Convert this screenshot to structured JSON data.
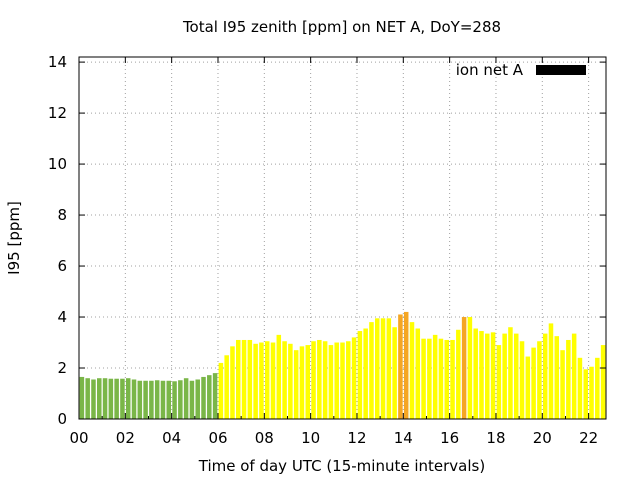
{
  "chart_data": {
    "type": "bar",
    "title": "Total I95 zenith [ppm] on NET A, DoY=288",
    "xlabel": "Time of day UTC (15-minute intervals)",
    "ylabel": "I95 [ppm]",
    "xlim": [
      0,
      22.75
    ],
    "ylim": [
      0,
      14.2
    ],
    "x_ticks": [
      0,
      2,
      4,
      6,
      8,
      10,
      12,
      14,
      16,
      18,
      20,
      22
    ],
    "x_tick_labels": [
      "00",
      "02",
      "04",
      "06",
      "08",
      "10",
      "12",
      "14",
      "16",
      "18",
      "20",
      "22"
    ],
    "y_ticks": [
      0,
      2,
      4,
      6,
      8,
      10,
      12,
      14
    ],
    "y_tick_labels": [
      "0",
      "2",
      "4",
      "6",
      "8",
      "10",
      "12",
      "14"
    ],
    "grid": true,
    "legend": {
      "label": "ion net A",
      "color": "#000000",
      "position": "top-right"
    },
    "series": [
      {
        "x": [
          0.0,
          0.25,
          0.5,
          0.75,
          1.0,
          1.25,
          1.5,
          1.75,
          2.0,
          2.25,
          2.5,
          2.75,
          3.0,
          3.25,
          3.5,
          3.75,
          4.0,
          4.25,
          4.5,
          4.75,
          5.0,
          5.25,
          5.5,
          5.75,
          6.0,
          6.25,
          6.5,
          6.75,
          7.0,
          7.25,
          7.5,
          7.75,
          8.0,
          8.25,
          8.5,
          8.75,
          9.0,
          9.25,
          9.5,
          9.75,
          10.0,
          10.25,
          10.5,
          10.75,
          11.0,
          11.25,
          11.5,
          11.75,
          12.0,
          12.25,
          12.5,
          12.75,
          13.0,
          13.25,
          13.5,
          13.75,
          14.0,
          14.25,
          14.5,
          14.75,
          15.0,
          15.25,
          15.5,
          15.75,
          16.0,
          16.25,
          16.5,
          16.75,
          17.0,
          17.25,
          17.5,
          17.75,
          18.0,
          18.25,
          18.5,
          18.75,
          19.0,
          19.25,
          19.5,
          19.75,
          20.0,
          20.25,
          20.5,
          20.75,
          21.0,
          21.25,
          21.5,
          21.75,
          22.0,
          22.25,
          22.5
        ],
        "values": [
          1.65,
          1.6,
          1.55,
          1.6,
          1.6,
          1.58,
          1.58,
          1.58,
          1.6,
          1.55,
          1.5,
          1.5,
          1.5,
          1.52,
          1.5,
          1.5,
          1.48,
          1.52,
          1.6,
          1.5,
          1.55,
          1.65,
          1.72,
          1.8,
          2.2,
          2.5,
          2.85,
          3.1,
          3.1,
          3.1,
          2.95,
          3.0,
          3.05,
          3.0,
          3.3,
          3.05,
          2.95,
          2.7,
          2.85,
          2.9,
          3.05,
          3.1,
          3.05,
          2.9,
          3.0,
          3.0,
          3.05,
          3.2,
          3.45,
          3.55,
          3.8,
          3.95,
          3.95,
          3.95,
          3.6,
          4.1,
          4.2,
          3.8,
          3.55,
          3.15,
          3.15,
          3.3,
          3.15,
          3.1,
          3.1,
          3.5,
          4.0,
          4.0,
          3.55,
          3.45,
          3.35,
          3.4,
          2.9,
          3.35,
          3.6,
          3.35,
          3.05,
          2.45,
          2.8,
          3.05,
          3.35,
          3.75,
          3.25,
          2.7,
          3.1,
          3.35,
          2.4,
          1.95,
          2.05,
          2.4,
          2.9
        ],
        "colors": [
          "#7ab648",
          "#7ab648",
          "#7ab648",
          "#7ab648",
          "#7ab648",
          "#7ab648",
          "#7ab648",
          "#7ab648",
          "#7ab648",
          "#7ab648",
          "#7ab648",
          "#7ab648",
          "#7ab648",
          "#7ab648",
          "#7ab648",
          "#7ab648",
          "#7ab648",
          "#7ab648",
          "#7ab648",
          "#7ab648",
          "#7ab648",
          "#7ab648",
          "#7ab648",
          "#7ab648",
          "#ffff00",
          "#ffff00",
          "#ffff00",
          "#ffff00",
          "#ffff00",
          "#ffff00",
          "#ffff00",
          "#ffff00",
          "#ffff00",
          "#ffff00",
          "#ffff00",
          "#ffff00",
          "#ffff00",
          "#ffff00",
          "#ffff00",
          "#ffff00",
          "#ffff00",
          "#ffff00",
          "#ffff00",
          "#ffff00",
          "#ffff00",
          "#ffff00",
          "#ffff00",
          "#ffff00",
          "#ffff00",
          "#ffff00",
          "#ffff00",
          "#ffff00",
          "#ffff00",
          "#ffff00",
          "#ffff00",
          "#f5a623",
          "#f5a623",
          "#ffff00",
          "#ffff00",
          "#ffff00",
          "#ffff00",
          "#ffff00",
          "#ffff00",
          "#ffff00",
          "#ffff00",
          "#ffff00",
          "#f5a623",
          "#ffff00",
          "#ffff00",
          "#ffff00",
          "#ffff00",
          "#ffff00",
          "#ffff00",
          "#ffff00",
          "#ffff00",
          "#ffff00",
          "#ffff00",
          "#ffff00",
          "#ffff00",
          "#ffff00",
          "#ffff00",
          "#ffff00",
          "#ffff00",
          "#ffff00",
          "#ffff00",
          "#ffff00",
          "#ffff00",
          "#ffff00",
          "#ffff00",
          "#ffff00",
          "#ffff00"
        ]
      }
    ]
  }
}
